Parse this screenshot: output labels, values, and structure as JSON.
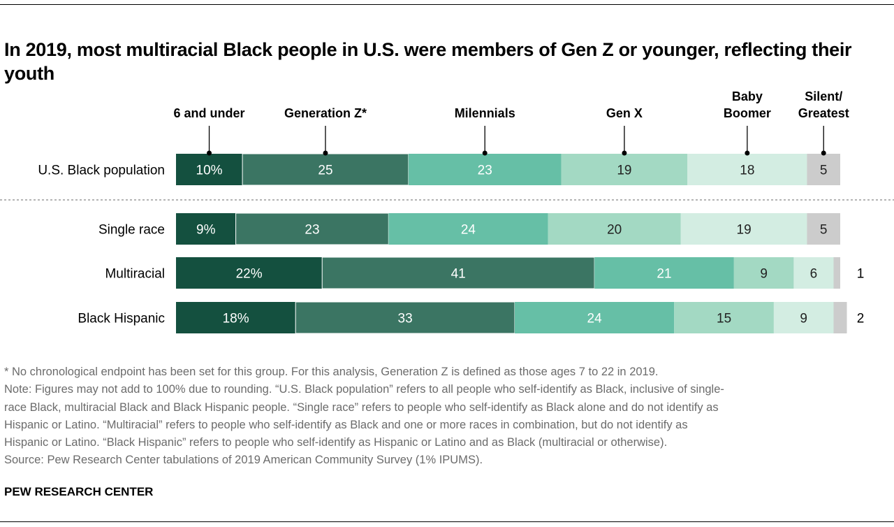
{
  "title": "In 2019, most multiracial Black people in U.S. were members of Gen Z or younger, reflecting their youth",
  "chart_data": {
    "type": "bar",
    "orientation": "horizontal-stacked",
    "title": "In 2019, most multiracial Black people in U.S. were members of Gen Z or younger, reflecting their youth",
    "unit": "%",
    "xlim": [
      0,
      100
    ],
    "categories": [
      "U.S. Black population",
      "Single race",
      "Multiracial",
      "Black Hispanic"
    ],
    "series": [
      {
        "name": "6 and under",
        "values": [
          10,
          9,
          22,
          18
        ],
        "color": "#14503f"
      },
      {
        "name": "Generation Z*",
        "values": [
          25,
          23,
          41,
          33
        ],
        "color": "#3b7563"
      },
      {
        "name": "Milennials",
        "values": [
          23,
          24,
          21,
          24
        ],
        "color": "#66bfa6"
      },
      {
        "name": "Gen X",
        "values": [
          19,
          20,
          9,
          15
        ],
        "color": "#a3d9c3"
      },
      {
        "name": "Baby Boomer",
        "values": [
          18,
          19,
          6,
          9
        ],
        "color": "#d3ede2"
      },
      {
        "name": "Silent/ Greatest",
        "values": [
          5,
          5,
          1,
          2
        ],
        "color": "#cccccc"
      }
    ],
    "legend_placement": "top, labels over first bar",
    "grid": false
  },
  "notes": {
    "footnote": "* No chronological endpoint has been set for this group. For this analysis, Generation Z is defined as those ages 7 to 22 in 2019.",
    "note_lines": [
      "Note: Figures may not add to 100% due to rounding. “U.S. Black population” refers to all people who self-identify as Black, inclusive of single-",
      "race Black, multiracial Black and Black Hispanic people. “Single race” refers to people who self-identify as Black alone and do not identify as",
      "Hispanic or Latino. “Multiracial” refers to people who self-identify as Black and one or more races in combination, but do not identify as",
      "Hispanic or Latino. “Black Hispanic” refers to people who self-identify as Hispanic or Latino and as Black (multiracial or otherwise)."
    ],
    "source": "Source: Pew Research Center tabulations of 2019 American Community Survey (1% IPUMS)."
  },
  "brand": "PEW RESEARCH CENTER"
}
